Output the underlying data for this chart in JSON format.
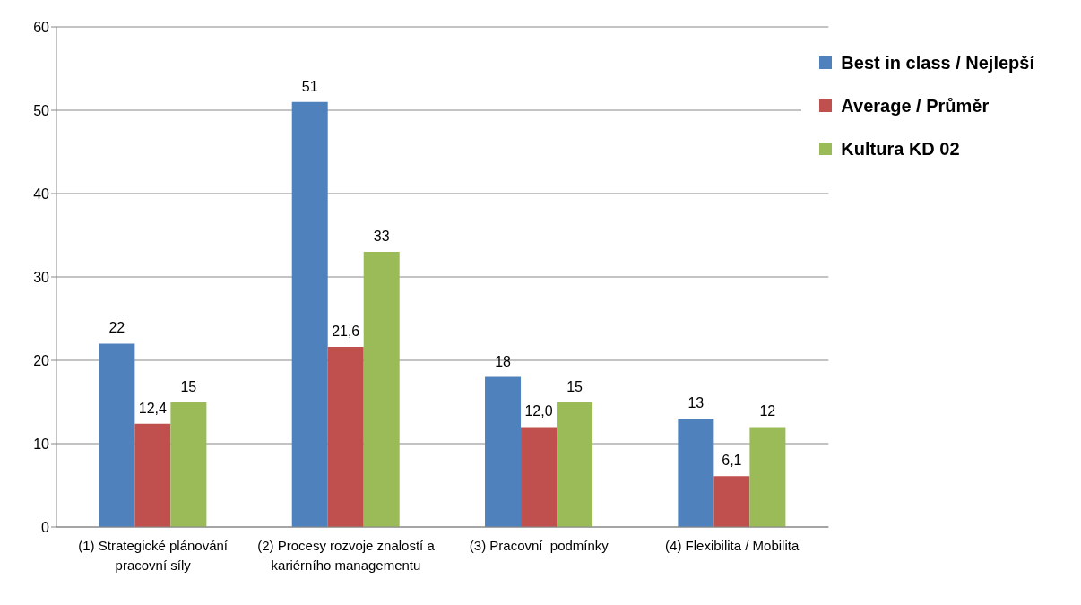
{
  "chart_data": {
    "type": "bar",
    "categories": [
      "(1) Strategické plánování pracovní síly",
      "(2) Procesy rozvoje znalostí a kariérního managementu",
      "(3) Pracovní  podmínky",
      "(4) Flexibilita / Mobilita"
    ],
    "series": [
      {
        "name": "Best in class / Nejlepší",
        "color": "#4f81bd",
        "values": [
          22,
          51,
          18,
          13
        ],
        "value_labels": [
          "22",
          "51",
          "18",
          "13"
        ]
      },
      {
        "name": "Average / Průměr",
        "color": "#c0504d",
        "values": [
          12.4,
          21.6,
          12.0,
          6.1
        ],
        "value_labels": [
          "12,4",
          "21,6",
          "12,0",
          "6,1"
        ]
      },
      {
        "name": "Kultura KD 02",
        "color": "#9bbb59",
        "values": [
          15,
          33,
          15,
          12
        ],
        "value_labels": [
          "15",
          "33",
          "15",
          "12"
        ]
      }
    ],
    "ylim": [
      0,
      60
    ],
    "yticks": [
      0,
      10,
      20,
      30,
      40,
      50,
      60
    ],
    "grid": "y",
    "legend": "top right"
  }
}
